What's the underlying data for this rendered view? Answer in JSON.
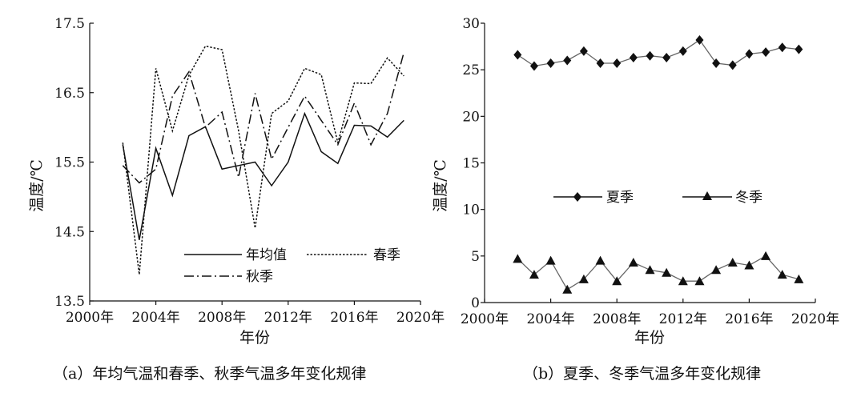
{
  "captions": {
    "left": "（a）年均气温和春季、秋季气温多年变化规律",
    "right": "（b）夏季、冬季气温多年变化规律"
  },
  "chart_data": [
    {
      "type": "line",
      "xlabel": "年份",
      "ylabel": "温度/℃",
      "xlim": [
        2000,
        2020
      ],
      "ylim": [
        13.5,
        17.5
      ],
      "xticks": [
        2000,
        2004,
        2008,
        2012,
        2016,
        2020
      ],
      "xtick_labels": [
        "2000年",
        "2004年",
        "2008年",
        "2012年",
        "2016年",
        "2020年"
      ],
      "yticks": [
        13.5,
        14.5,
        15.5,
        16.5,
        17.5
      ],
      "ytick_labels": [
        "13.5",
        "14.5",
        "15.5",
        "16.5",
        "17.5"
      ],
      "grid": false,
      "legend": "inside-bottom-right",
      "x": [
        2002,
        2003,
        2004,
        2005,
        2006,
        2007,
        2008,
        2009,
        2010,
        2011,
        2012,
        2013,
        2014,
        2015,
        2016,
        2017,
        2018,
        2019
      ],
      "series": [
        {
          "name": "年均值",
          "style": "solid",
          "values": [
            15.75,
            14.38,
            15.7,
            15.02,
            15.88,
            16.01,
            15.4,
            15.45,
            15.5,
            15.16,
            15.5,
            16.2,
            15.65,
            15.48,
            16.03,
            16.02,
            15.86,
            16.1
          ]
        },
        {
          "name": "春季",
          "style": "dotted",
          "values": [
            15.78,
            13.88,
            16.85,
            15.95,
            16.75,
            17.17,
            17.12,
            15.95,
            14.55,
            16.2,
            16.38,
            16.85,
            16.76,
            15.78,
            16.64,
            16.63,
            17.0,
            16.74
          ]
        },
        {
          "name": "秋季",
          "style": "dashdot",
          "values": [
            15.45,
            15.2,
            15.4,
            16.45,
            16.8,
            16.0,
            16.22,
            15.28,
            16.49,
            15.54,
            16.0,
            16.45,
            16.1,
            15.75,
            16.35,
            15.75,
            16.2,
            17.08
          ]
        }
      ]
    },
    {
      "type": "line",
      "xlabel": "年份",
      "ylabel": "温度/℃",
      "xlim": [
        2000,
        2020
      ],
      "ylim": [
        0,
        30
      ],
      "xticks": [
        2000,
        2004,
        2008,
        2012,
        2016,
        2020
      ],
      "xtick_labels": [
        "2000年",
        "2004年",
        "2008年",
        "2012年",
        "2016年",
        "2020年"
      ],
      "yticks": [
        0,
        5,
        10,
        15,
        20,
        25,
        30
      ],
      "ytick_labels": [
        "0",
        "5",
        "10",
        "15",
        "20",
        "25",
        "30"
      ],
      "grid": false,
      "legend": "middle",
      "x": [
        2002,
        2003,
        2004,
        2005,
        2006,
        2007,
        2008,
        2009,
        2010,
        2011,
        2012,
        2013,
        2014,
        2015,
        2016,
        2017,
        2018,
        2019
      ],
      "series": [
        {
          "name": "夏季",
          "marker": "diamond",
          "values": [
            26.6,
            25.4,
            25.7,
            26.0,
            27.0,
            25.7,
            25.7,
            26.3,
            26.5,
            26.3,
            27.0,
            28.2,
            25.7,
            25.5,
            26.7,
            26.9,
            27.4,
            27.2
          ]
        },
        {
          "name": "冬季",
          "marker": "triangle",
          "values": [
            4.7,
            3.0,
            4.5,
            1.4,
            2.5,
            4.5,
            2.3,
            4.3,
            3.5,
            3.2,
            2.3,
            2.3,
            3.5,
            4.3,
            4.0,
            5.0,
            3.0,
            2.5
          ]
        }
      ]
    }
  ]
}
